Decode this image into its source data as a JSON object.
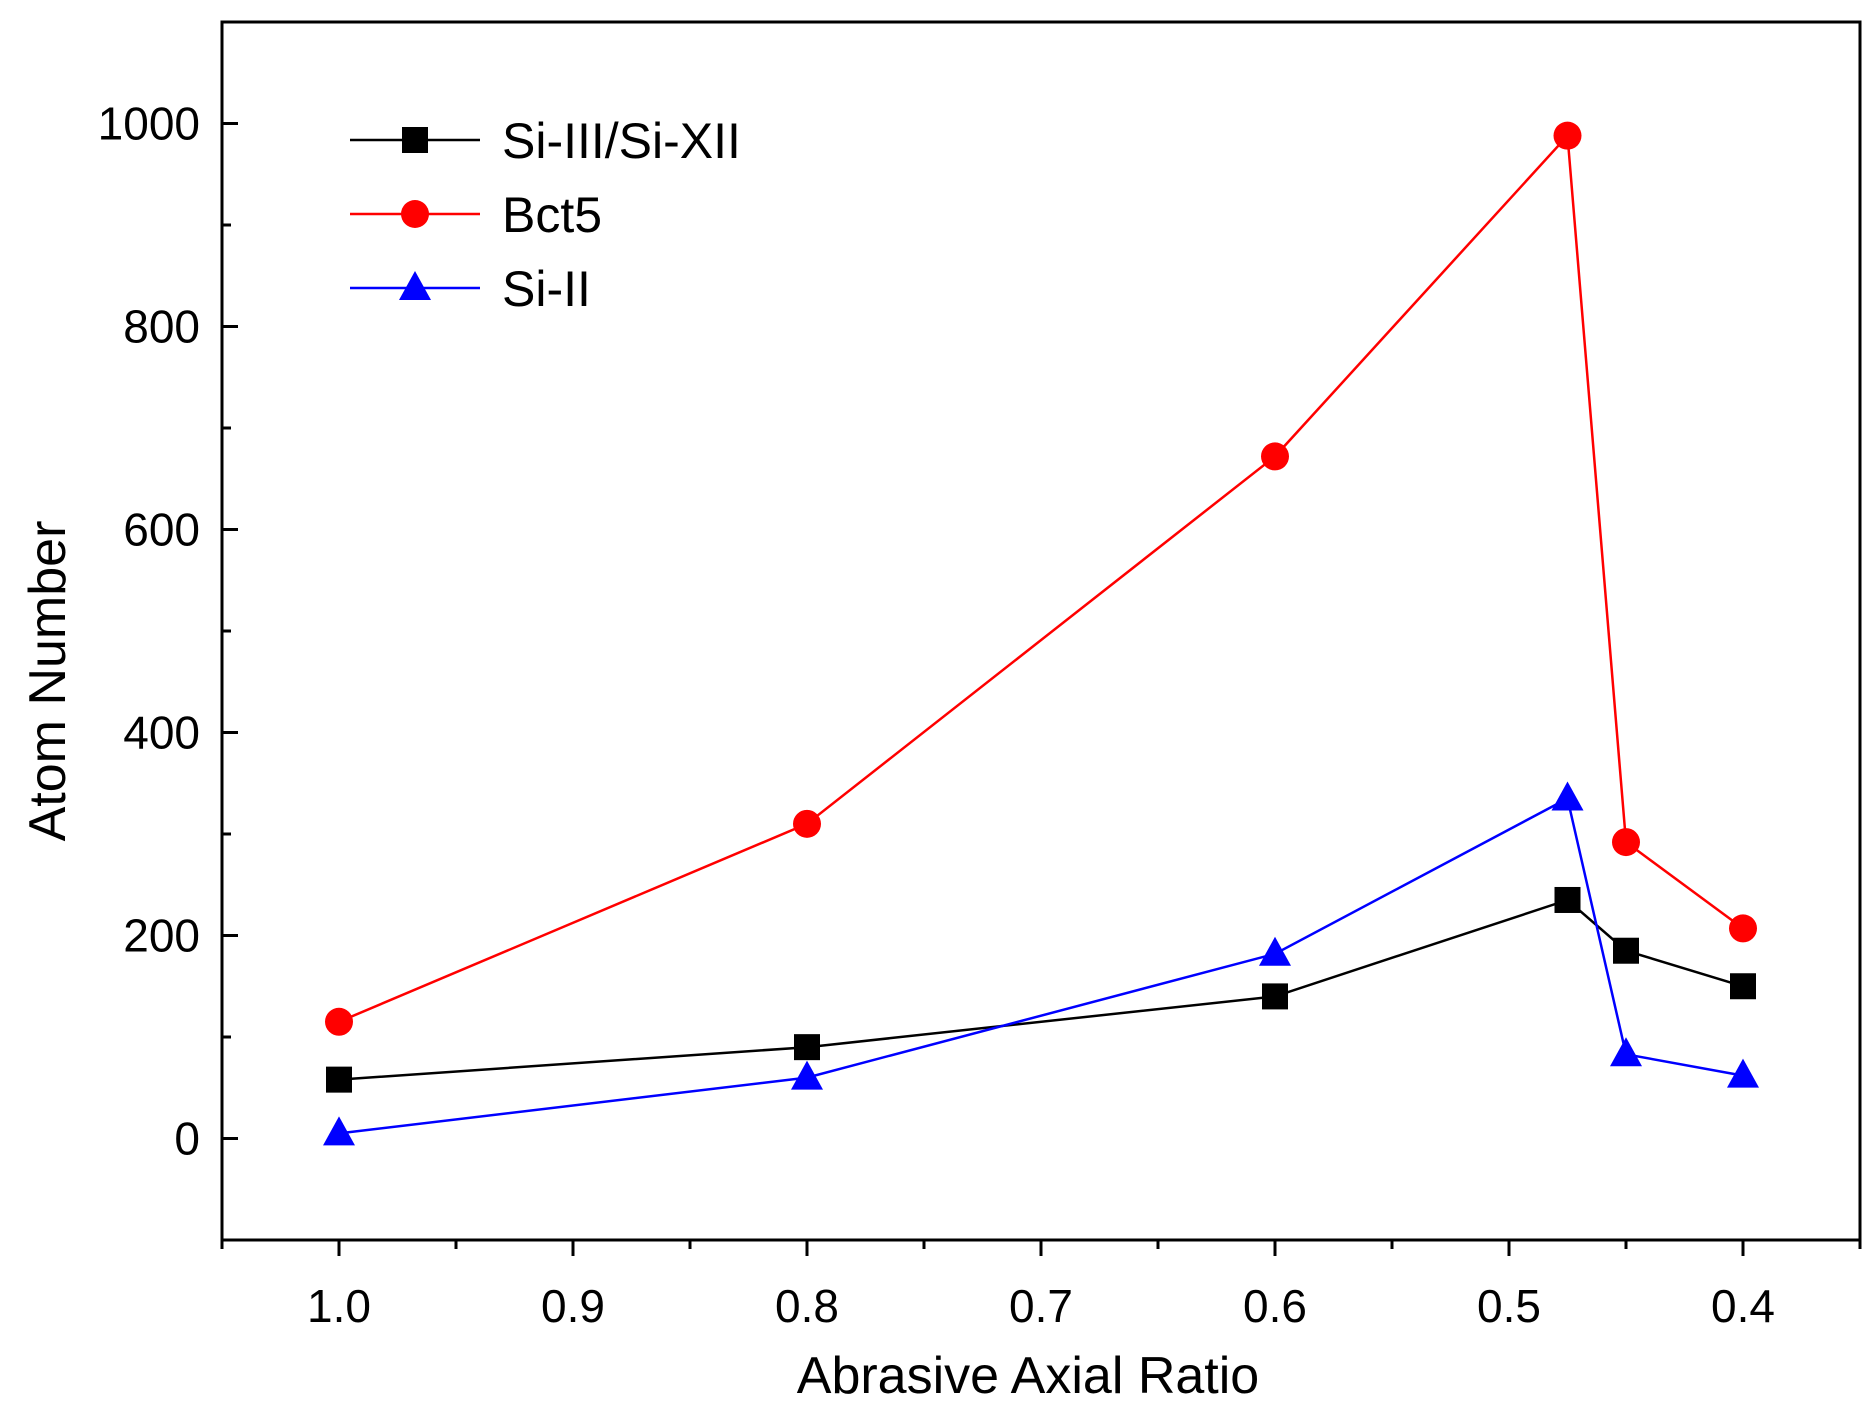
{
  "chart_data": {
    "type": "line",
    "title": "",
    "xlabel": "Abrasive Axial Ratio",
    "ylabel": "Atom Number",
    "x": [
      1.0,
      0.8,
      0.6,
      0.475,
      0.45,
      0.4
    ],
    "xlim": [
      1.05,
      0.35
    ],
    "ylim": [
      -100,
      1100
    ],
    "xticks": [
      1.0,
      0.9,
      0.8,
      0.7,
      0.6,
      0.5,
      0.4
    ],
    "xtick_labels": [
      "1.0",
      "0.9",
      "0.8",
      "0.7",
      "0.6",
      "0.5",
      "0.4"
    ],
    "yticks": [
      0,
      200,
      400,
      600,
      800,
      1000
    ],
    "ytick_labels": [
      "0",
      "200",
      "400",
      "600",
      "800",
      "1000"
    ],
    "grid": false,
    "legend_position": "top-left",
    "series": [
      {
        "name": "Si-III/Si-XII",
        "color": "#000000",
        "marker": "square",
        "values": [
          58,
          90,
          140,
          235,
          185,
          150
        ]
      },
      {
        "name": "Bct5",
        "color": "#ff0000",
        "marker": "circle",
        "values": [
          115,
          310,
          672,
          988,
          292,
          207
        ]
      },
      {
        "name": "Si-II",
        "color": "#0000ff",
        "marker": "triangle",
        "values": [
          5,
          60,
          182,
          335,
          83,
          62
        ]
      }
    ]
  }
}
